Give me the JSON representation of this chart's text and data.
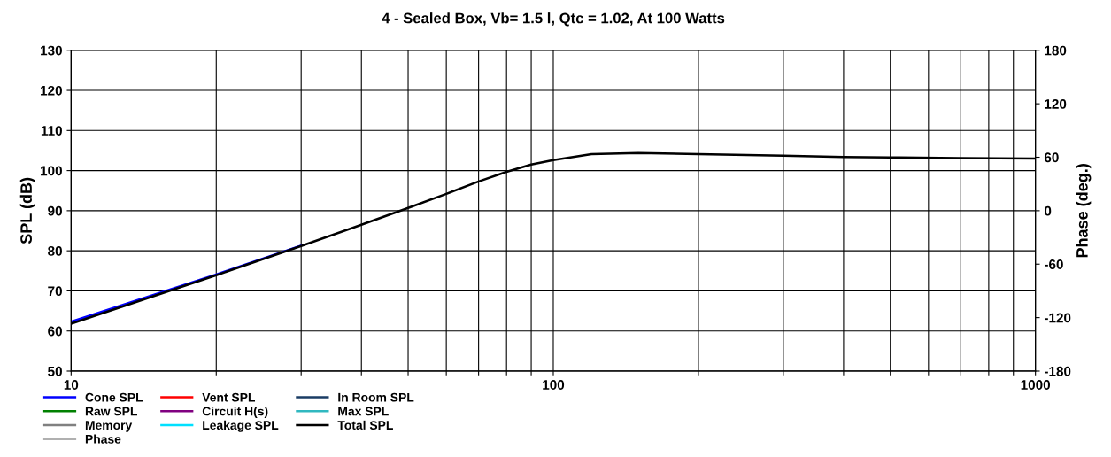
{
  "chart_data": {
    "type": "line",
    "title": "4 - Sealed Box, Vb= 1.5 l, Qtc = 1.02, At 100 Watts",
    "ylabel": "SPL (dB)",
    "y2label": "Phase (deg.)",
    "log": "x",
    "xlim": [
      10,
      1000
    ],
    "xticks": [
      10,
      {
        "value": 20,
        "label": null
      },
      {
        "value": 30,
        "label": null
      },
      {
        "value": 40,
        "label": null
      },
      {
        "value": 50,
        "label": null
      },
      {
        "value": 60,
        "label": null
      },
      {
        "value": 70,
        "label": null
      },
      {
        "value": 80,
        "label": null
      },
      {
        "value": 90,
        "label": null
      },
      100,
      {
        "value": 200,
        "label": null
      },
      {
        "value": 300,
        "label": null
      },
      {
        "value": 400,
        "label": null
      },
      {
        "value": 500,
        "label": null
      },
      {
        "value": 600,
        "label": null
      },
      {
        "value": 700,
        "label": null
      },
      {
        "value": 800,
        "label": null
      },
      {
        "value": 900,
        "label": null
      },
      1000
    ],
    "ylim": [
      50,
      130
    ],
    "yticks": [
      50,
      60,
      70,
      80,
      90,
      100,
      110,
      120,
      130
    ],
    "y2lim": [
      -180,
      180
    ],
    "y2ticks": [
      -180,
      -120,
      -60,
      0,
      60,
      120,
      180
    ],
    "grid": true,
    "legend": "bottom left",
    "x": [
      10,
      20,
      30,
      40,
      50,
      60,
      70,
      80,
      90,
      100,
      120,
      150,
      200,
      300,
      400,
      500,
      700,
      1000
    ],
    "series": [
      {
        "name": "Cone SPL",
        "color": "#0000ff",
        "values": [
          62.3,
          74.1,
          81.3,
          null,
          null,
          null,
          null,
          null,
          null,
          null,
          null,
          null,
          null,
          null,
          null,
          null,
          null,
          null
        ]
      },
      {
        "name": "Raw SPL",
        "color": "#008000",
        "values": [
          null,
          null,
          null,
          null,
          null,
          null,
          null,
          null,
          null,
          null,
          null,
          null,
          null,
          null,
          null,
          null,
          null,
          null
        ]
      },
      {
        "name": "Memory",
        "color": "#808080",
        "values": [
          null,
          null,
          null,
          null,
          null,
          null,
          null,
          null,
          null,
          null,
          null,
          null,
          null,
          null,
          null,
          null,
          null,
          null
        ]
      },
      {
        "name": "Phase",
        "color": "#b0b0b0",
        "values": [
          null,
          null,
          null,
          null,
          null,
          null,
          null,
          null,
          null,
          null,
          null,
          null,
          null,
          null,
          null,
          null,
          null,
          null
        ]
      },
      {
        "name": "Vent SPL",
        "color": "#ff0000",
        "values": [
          null,
          null,
          null,
          null,
          null,
          null,
          null,
          null,
          null,
          null,
          null,
          null,
          null,
          null,
          null,
          null,
          null,
          null
        ]
      },
      {
        "name": "Circuit H(s)",
        "color": "#800080",
        "values": [
          null,
          null,
          null,
          null,
          null,
          null,
          null,
          null,
          null,
          null,
          null,
          null,
          null,
          null,
          null,
          null,
          null,
          null
        ]
      },
      {
        "name": "Leakage SPL",
        "color": "#00e0ff",
        "values": [
          null,
          null,
          null,
          null,
          null,
          null,
          null,
          null,
          null,
          null,
          null,
          null,
          null,
          null,
          null,
          null,
          null,
          null
        ]
      },
      {
        "name": "In Room SPL",
        "color": "#1a3c64",
        "values": [
          null,
          null,
          null,
          null,
          null,
          null,
          null,
          null,
          null,
          null,
          null,
          null,
          null,
          null,
          null,
          null,
          null,
          null
        ]
      },
      {
        "name": "Max SPL",
        "color": "#30b8c0",
        "values": [
          null,
          null,
          null,
          null,
          null,
          null,
          null,
          null,
          null,
          null,
          null,
          null,
          null,
          null,
          null,
          null,
          null,
          null
        ]
      },
      {
        "name": "Total SPL",
        "color": "#000000",
        "values": [
          61.8,
          73.9,
          81.2,
          86.5,
          90.7,
          94.2,
          97.3,
          99.7,
          101.5,
          102.6,
          104.1,
          104.4,
          104.1,
          103.7,
          103.4,
          103.3,
          103.1,
          103.0
        ]
      }
    ]
  }
}
